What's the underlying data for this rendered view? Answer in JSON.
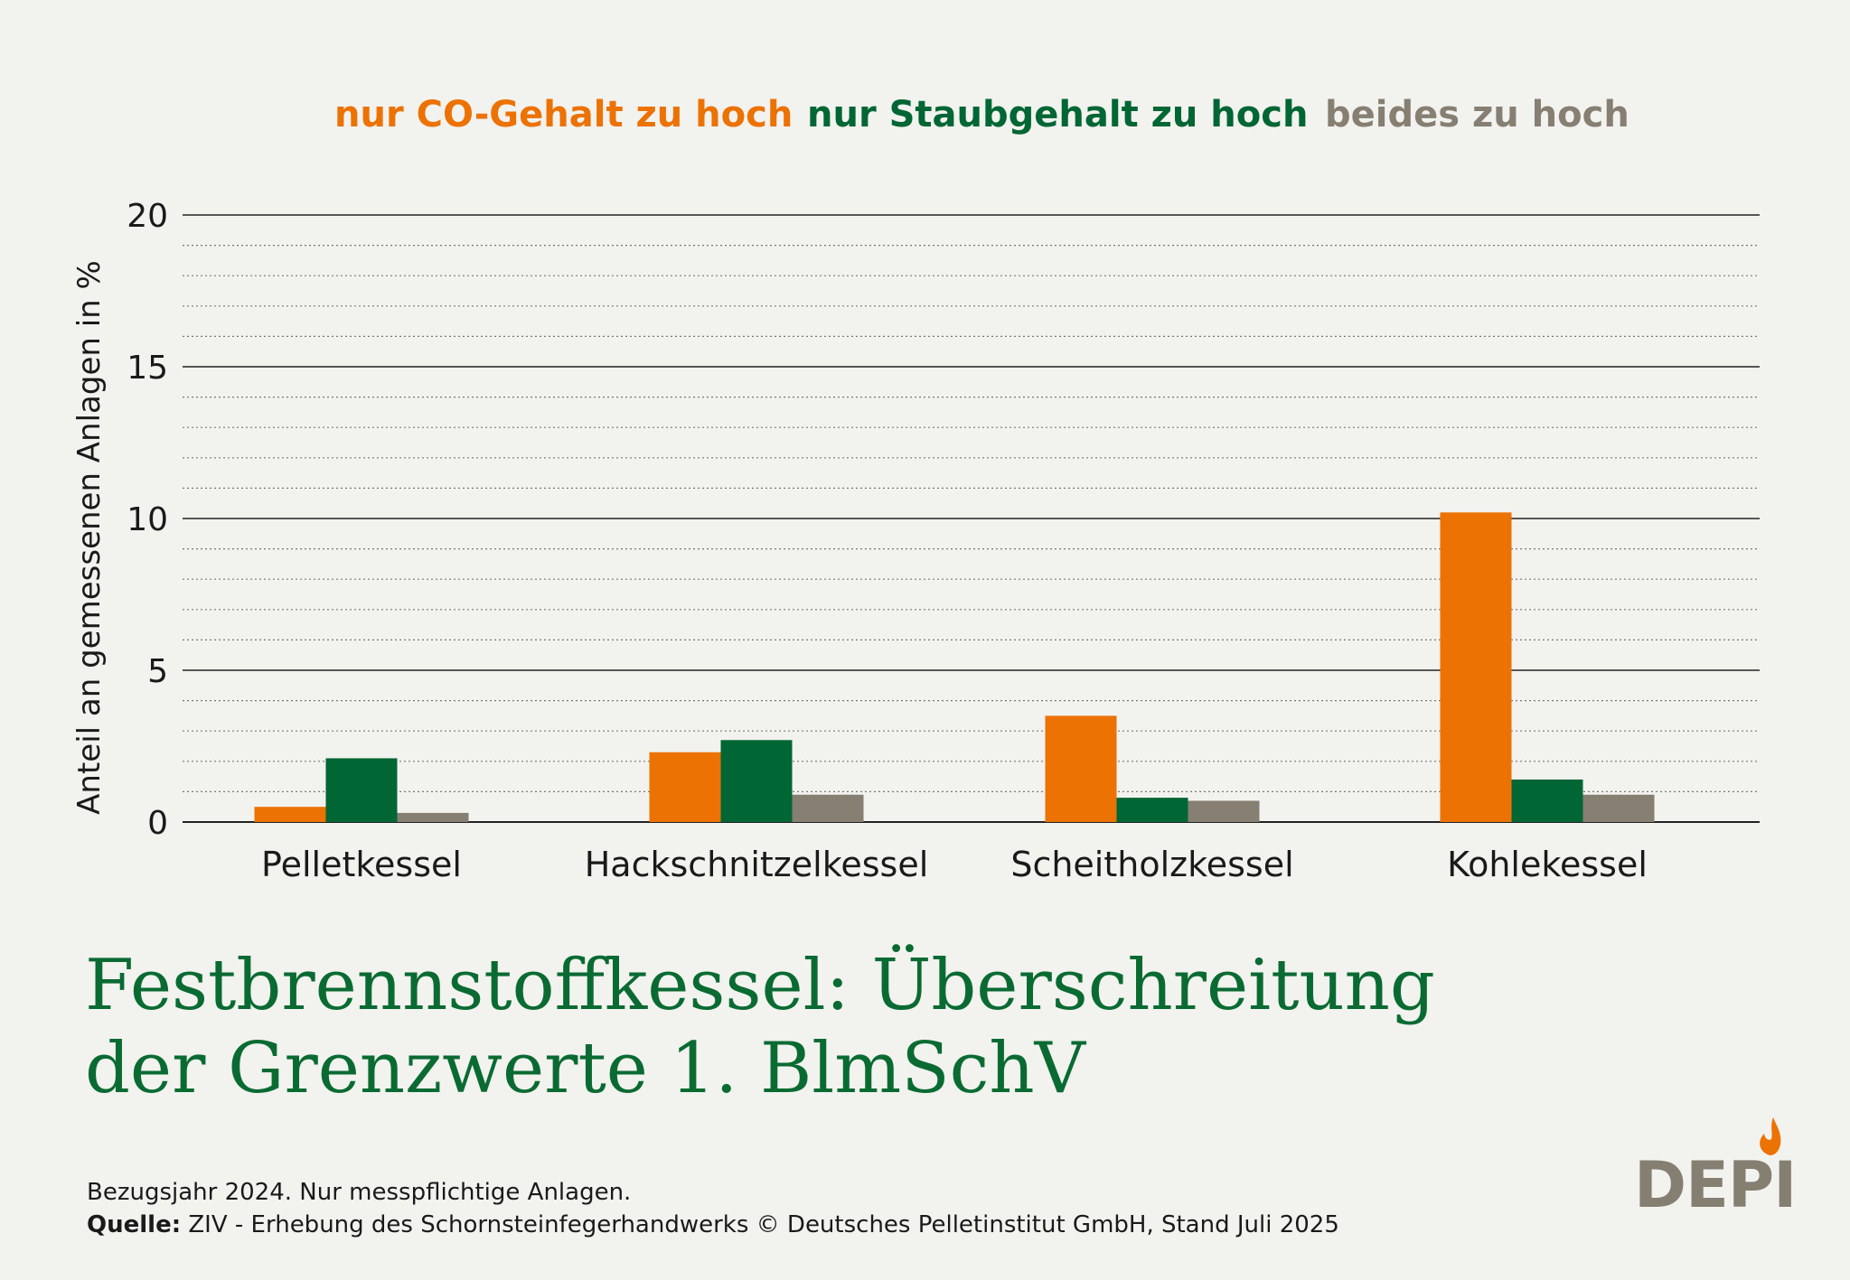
{
  "chart_data": {
    "type": "bar",
    "title": "Festbrennstoffkessel: Überschreitung der Grenzwerte 1. BlmSchV",
    "title_lines": [
      "Festbrennstoffkessel: Überschreitung",
      "der Grenzwerte 1. BlmSchV"
    ],
    "ylabel": "Anteil an gemessenen Anlagen in %",
    "xlabel": "",
    "ylim": [
      0,
      20
    ],
    "yticks": [
      0,
      5,
      10,
      15,
      20
    ],
    "grid": true,
    "legend_position": "top",
    "categories": [
      "Pelletkessel",
      "Hackschnitzelkessel",
      "Scheitholzkessel",
      "Kohlekessel"
    ],
    "series": [
      {
        "name": "nur CO-Gehalt zu hoch",
        "color": "#ec7204",
        "values": [
          0.5,
          2.3,
          3.5,
          10.2
        ]
      },
      {
        "name": "nur Staubgehalt zu hoch",
        "color": "#006633",
        "values": [
          2.1,
          2.7,
          0.8,
          1.4
        ]
      },
      {
        "name": "beides zu hoch",
        "color": "#867f72",
        "values": [
          0.3,
          0.9,
          0.7,
          0.9
        ]
      }
    ]
  },
  "footnote": {
    "line1": "Bezugsjahr 2024. Nur messpflichtige Anlagen.",
    "source_label": "Quelle:",
    "source_text": " ZIV - Erhebung des Schornsteinfegerhandwerks © Deutsches Pelletinstitut GmbH, Stand Juli 2025"
  },
  "logo": {
    "text": "DEPI",
    "flame_color": "#ec7204",
    "text_color": "#857f72"
  },
  "colors": {
    "background": "#f2f2ef",
    "title": "#0a6b32"
  }
}
